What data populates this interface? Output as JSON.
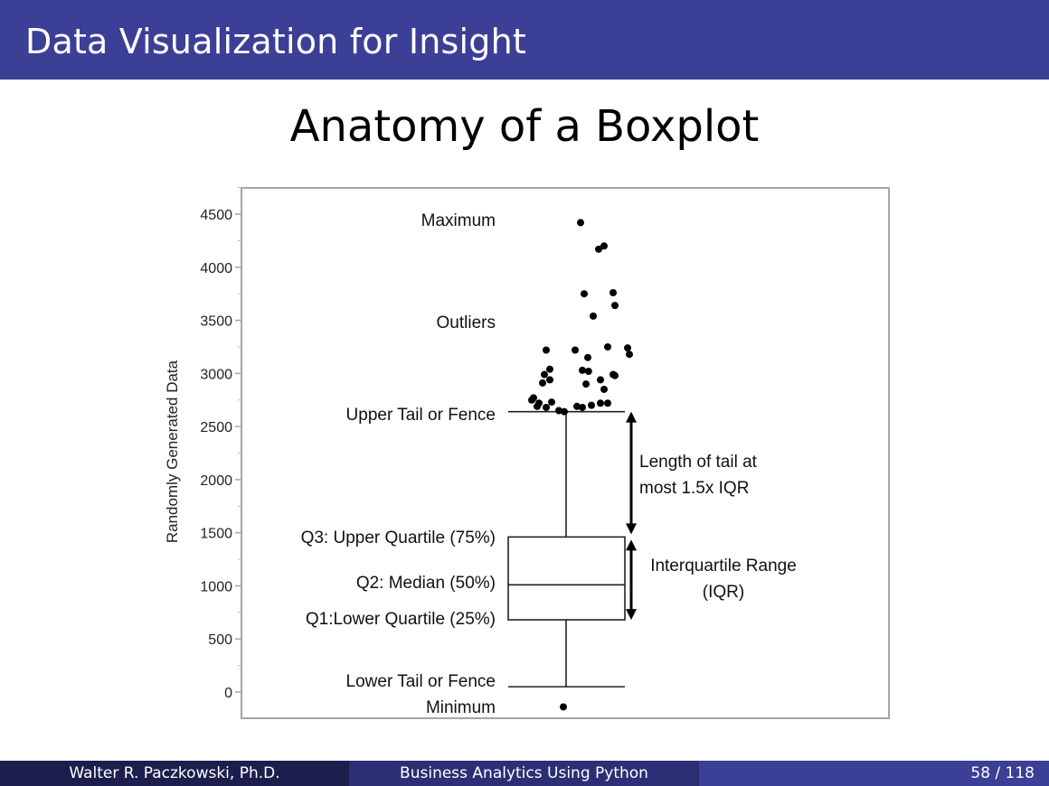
{
  "header": {
    "title": "Data Visualization for Insight"
  },
  "slide": {
    "title": "Anatomy of a Boxplot"
  },
  "footer": {
    "author": "Walter R. Paczkowski, Ph.D.",
    "course": "Business Analytics Using Python",
    "page": "58 / 118"
  },
  "chart_data": {
    "type": "boxplot",
    "ylabel": "Randomly Generated Data",
    "ylim": [
      -250,
      4750
    ],
    "yticks": [
      0,
      500,
      1000,
      1500,
      2000,
      2500,
      3000,
      3500,
      4000,
      4500
    ],
    "grid": false,
    "box": {
      "lower_fence": 50,
      "q1": 680,
      "median": 1010,
      "q3": 1460,
      "upper_fence": 2640
    },
    "outliers": [
      [
        0.4,
        4420
      ],
      [
        0.9,
        4170
      ],
      [
        1.05,
        4200
      ],
      [
        0.5,
        3750
      ],
      [
        1.3,
        3760
      ],
      [
        1.35,
        3640
      ],
      [
        0.75,
        3540
      ],
      [
        -0.55,
        3220
      ],
      [
        0.25,
        3220
      ],
      [
        1.15,
        3250
      ],
      [
        1.7,
        3240
      ],
      [
        1.75,
        3180
      ],
      [
        0.6,
        3150
      ],
      [
        -0.45,
        3040
      ],
      [
        -0.6,
        2990
      ],
      [
        0.45,
        3030
      ],
      [
        0.62,
        3020
      ],
      [
        1.3,
        2990
      ],
      [
        1.35,
        2980
      ],
      [
        -0.45,
        2940
      ],
      [
        -0.65,
        2910
      ],
      [
        0.95,
        2940
      ],
      [
        0.55,
        2900
      ],
      [
        1.05,
        2850
      ],
      [
        -0.9,
        2770
      ],
      [
        -0.95,
        2750
      ],
      [
        -0.75,
        2720
      ],
      [
        -0.4,
        2730
      ],
      [
        0.7,
        2700
      ],
      [
        0.95,
        2720
      ],
      [
        1.15,
        2720
      ],
      [
        -0.8,
        2690
      ],
      [
        -0.55,
        2680
      ],
      [
        0.3,
        2690
      ],
      [
        0.45,
        2680
      ],
      [
        -0.2,
        2650
      ],
      [
        -0.05,
        2640
      ]
    ],
    "minimum_point": -140,
    "annotations": {
      "maximum": "Maximum",
      "outliers": "Outliers",
      "upper_fence": "Upper Tail or Fence",
      "q3": "Q3: Upper Quartile (75%)",
      "median": "Q2: Median (50%)",
      "q1": "Q1:Lower Quartile (25%)",
      "lower_fence": "Lower Tail or Fence",
      "minimum": "Minimum",
      "tail_length_line1": "Length of tail at",
      "tail_length_line2": "most 1.5x IQR",
      "iqr_line1": "Interquartile Range",
      "iqr_line2": "(IQR)"
    }
  }
}
